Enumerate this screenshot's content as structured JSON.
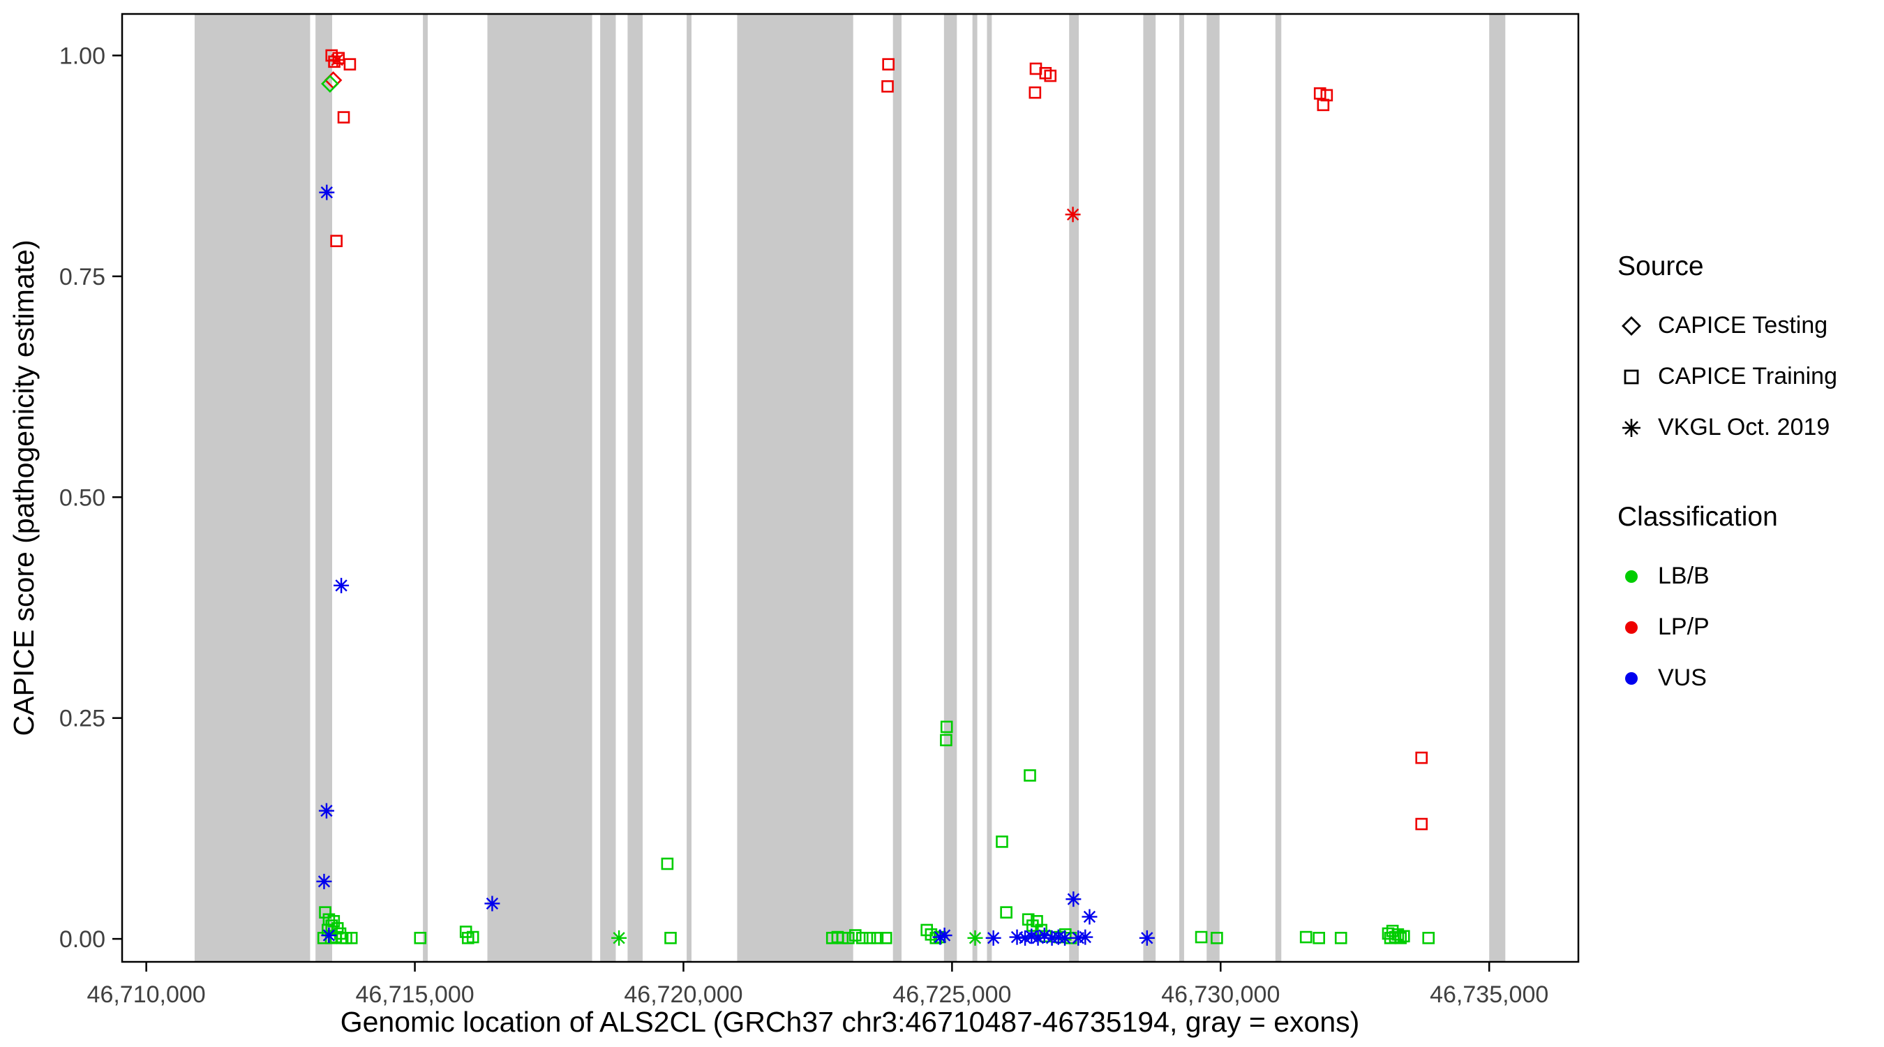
{
  "axes": {
    "x_title": "Genomic location of ALS2CL (GRCh37 chr3:46710487-46735194, gray = exons)",
    "y_title": "CAPICE score (pathogenicity estimate)"
  },
  "legend": {
    "source": {
      "title": "Source",
      "items": [
        {
          "label": "CAPICE Testing",
          "shape": "diamond"
        },
        {
          "label": "CAPICE Training",
          "shape": "square"
        },
        {
          "label": "VKGL Oct. 2019",
          "shape": "asterisk"
        }
      ]
    },
    "classification": {
      "title": "Classification",
      "items": [
        {
          "label": "LB/B",
          "color": "#00CD00"
        },
        {
          "label": "LP/P",
          "color": "#EE0000"
        },
        {
          "label": "VUS",
          "color": "#0000EE"
        }
      ]
    }
  },
  "chart_data": {
    "type": "scatter",
    "title": "",
    "xlabel": "Genomic location of ALS2CL (GRCh37 chr3:46710487-46735194, gray = exons)",
    "ylabel": "CAPICE score (pathogenicity estimate)",
    "xlim": [
      46709550,
      46736660
    ],
    "ylim": [
      -0.026,
      1.047
    ],
    "x_ticks": [
      {
        "value": 46710000,
        "label": "46,710,000"
      },
      {
        "value": 46715000,
        "label": "46,715,000"
      },
      {
        "value": 46720000,
        "label": "46,720,000"
      },
      {
        "value": 46725000,
        "label": "46,725,000"
      },
      {
        "value": 46730000,
        "label": "46,730,000"
      },
      {
        "value": 46735000,
        "label": "46,735,000"
      }
    ],
    "y_ticks": [
      {
        "value": 0,
        "label": "0.00"
      },
      {
        "value": 0.25,
        "label": "0.25"
      },
      {
        "value": 0.5,
        "label": "0.50"
      },
      {
        "value": 0.75,
        "label": "0.75"
      },
      {
        "value": 1.0,
        "label": "1.00"
      }
    ],
    "exon_color": "#C9C9C9",
    "grid": false,
    "legend_position": "right",
    "exons": [
      [
        46710900,
        46713050
      ],
      [
        46713150,
        46713460
      ],
      [
        46715150,
        46715240
      ],
      [
        46716350,
        46718300
      ],
      [
        46718450,
        46718740
      ],
      [
        46718960,
        46719240
      ],
      [
        46720060,
        46720150
      ],
      [
        46721000,
        46723160
      ],
      [
        46723900,
        46724060
      ],
      [
        46724850,
        46725090
      ],
      [
        46725380,
        46725470
      ],
      [
        46725650,
        46725740
      ],
      [
        46727180,
        46727360
      ],
      [
        46728560,
        46728790
      ],
      [
        46729230,
        46729320
      ],
      [
        46729740,
        46729980
      ],
      [
        46731020,
        46731130
      ],
      [
        46735000,
        46735300
      ]
    ],
    "series": [
      {
        "source": "CAPICE Testing",
        "classification": "LP/P",
        "shape": "diamond",
        "color": "#EE0000",
        "points": [
          [
            46713480,
            0.972
          ]
        ]
      },
      {
        "source": "CAPICE Testing",
        "classification": "LB/B",
        "shape": "diamond",
        "color": "#00CD00",
        "points": [
          [
            46713420,
            0.968
          ]
        ]
      },
      {
        "source": "CAPICE Training",
        "classification": "LP/P",
        "shape": "square",
        "color": "#EE0000",
        "points": [
          [
            46713450,
            1.0
          ],
          [
            46713580,
            0.997
          ],
          [
            46713500,
            0.993
          ],
          [
            46713790,
            0.99
          ],
          [
            46713675,
            0.93
          ],
          [
            46713540,
            0.79
          ],
          [
            46723815,
            0.99
          ],
          [
            46723800,
            0.965
          ],
          [
            46726560,
            0.985
          ],
          [
            46726740,
            0.98
          ],
          [
            46726830,
            0.977
          ],
          [
            46726545,
            0.958
          ],
          [
            46731850,
            0.957
          ],
          [
            46731975,
            0.955
          ],
          [
            46731910,
            0.944
          ],
          [
            46733740,
            0.205
          ],
          [
            46733740,
            0.13
          ]
        ]
      },
      {
        "source": "CAPICE Training",
        "classification": "LB/B",
        "shape": "square",
        "color": "#00CD00",
        "points": [
          [
            46713330,
            0.03
          ],
          [
            46713400,
            0.022
          ],
          [
            46713490,
            0.02
          ],
          [
            46713450,
            0.015
          ],
          [
            46713380,
            0.01
          ],
          [
            46713560,
            0.012
          ],
          [
            46713610,
            0.006
          ],
          [
            46713300,
            0.001
          ],
          [
            46713440,
            0.001
          ],
          [
            46713530,
            0.002
          ],
          [
            46713650,
            0.001
          ],
          [
            46713720,
            0.001
          ],
          [
            46713820,
            0.001
          ],
          [
            46715100,
            0.001
          ],
          [
            46715950,
            0.008
          ],
          [
            46715990,
            0.001
          ],
          [
            46716080,
            0.002
          ],
          [
            46719700,
            0.085
          ],
          [
            46719760,
            0.001
          ],
          [
            46722770,
            0.001
          ],
          [
            46722870,
            0.002
          ],
          [
            46722960,
            0.001
          ],
          [
            46723070,
            0.001
          ],
          [
            46723200,
            0.004
          ],
          [
            46723330,
            0.001
          ],
          [
            46723470,
            0.001
          ],
          [
            46723610,
            0.001
          ],
          [
            46723770,
            0.001
          ],
          [
            46724530,
            0.01
          ],
          [
            46724610,
            0.005
          ],
          [
            46724700,
            0.001
          ],
          [
            46724770,
            0.002
          ],
          [
            46724900,
            0.24
          ],
          [
            46724890,
            0.225
          ],
          [
            46725930,
            0.11
          ],
          [
            46726010,
            0.03
          ],
          [
            46726450,
            0.185
          ],
          [
            46726420,
            0.022
          ],
          [
            46726500,
            0.015
          ],
          [
            46726580,
            0.02
          ],
          [
            46726660,
            0.01
          ],
          [
            46726740,
            0.003
          ],
          [
            46727010,
            0.002
          ],
          [
            46727110,
            0.005
          ],
          [
            46727210,
            0.001
          ],
          [
            46729640,
            0.002
          ],
          [
            46729930,
            0.001
          ],
          [
            46731590,
            0.002
          ],
          [
            46731830,
            0.001
          ],
          [
            46732240,
            0.001
          ],
          [
            46733120,
            0.006
          ],
          [
            46733160,
            0.001
          ],
          [
            46733200,
            0.009
          ],
          [
            46733250,
            0.002
          ],
          [
            46733300,
            0.005
          ],
          [
            46733350,
            0.001
          ],
          [
            46733410,
            0.003
          ],
          [
            46733870,
            0.001
          ]
        ]
      },
      {
        "source": "VKGL Oct. 2019",
        "classification": "LP/P",
        "shape": "asterisk",
        "color": "#EE0000",
        "points": [
          [
            46713555,
            0.995
          ],
          [
            46727250,
            0.82
          ]
        ]
      },
      {
        "source": "VKGL Oct. 2019",
        "classification": "LB/B",
        "shape": "asterisk",
        "color": "#00CD00",
        "points": [
          [
            46718800,
            0.001
          ],
          [
            46725430,
            0.001
          ]
        ]
      },
      {
        "source": "VKGL Oct. 2019",
        "classification": "VUS",
        "shape": "asterisk",
        "color": "#0000EE",
        "points": [
          [
            46713360,
            0.845
          ],
          [
            46713630,
            0.4
          ],
          [
            46713355,
            0.145
          ],
          [
            46713310,
            0.065
          ],
          [
            46713400,
            0.004
          ],
          [
            46716440,
            0.04
          ],
          [
            46724780,
            0.002
          ],
          [
            46724860,
            0.004
          ],
          [
            46725770,
            0.001
          ],
          [
            46726210,
            0.002
          ],
          [
            46726360,
            0.001
          ],
          [
            46726480,
            0.003
          ],
          [
            46726600,
            0.001
          ],
          [
            46726720,
            0.004
          ],
          [
            46726860,
            0.001
          ],
          [
            46726980,
            0.002
          ],
          [
            46727100,
            0.001
          ],
          [
            46727260,
            0.045
          ],
          [
            46727560,
            0.025
          ],
          [
            46727350,
            0.001
          ],
          [
            46727480,
            0.002
          ],
          [
            46728630,
            0.001
          ]
        ]
      }
    ]
  }
}
